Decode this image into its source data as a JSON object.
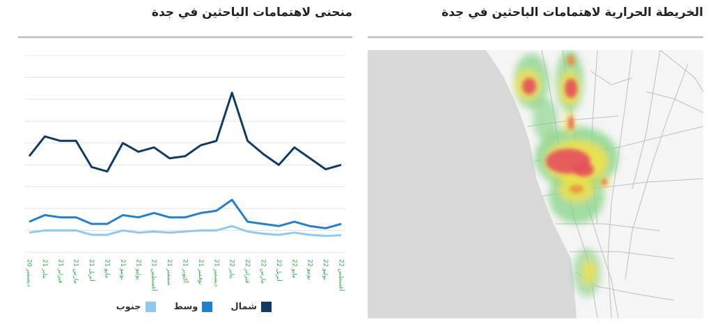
{
  "panels": {
    "chart_title": "منحنى لاهتمامات الباحثين في جدة",
    "map_title": "الخريطة الحرارية لاهتمامات الباحثين  في جدة"
  },
  "legend": [
    {
      "label": "شمال",
      "color": "#0d3b66"
    },
    {
      "label": "وسط",
      "color": "#1f7fd1"
    },
    {
      "label": "جنوب",
      "color": "#8ec9f2"
    }
  ],
  "chart_data": {
    "type": "line",
    "title": "منحنى لاهتمامات الباحثين في جدة",
    "categories": [
      "20 ديسمبر",
      "21 يناير",
      "21 فبراير",
      "21 مارس",
      "21 أبريل",
      "21 مايو",
      "21 يونيو",
      "21 يوليو",
      "21 أغسطس",
      "21 سبتمبر",
      "21 أكتوبر",
      "21 نوفمبر",
      "21 ديسمبر",
      "22 يناير",
      "22 فبراير",
      "22 مارس",
      "22 أبريل",
      "22 مايو",
      "22 يونيو",
      "22 يوليو",
      "22 أغسطس"
    ],
    "ylim": [
      0,
      90
    ],
    "grid": true,
    "legend_position": "bottom",
    "series": [
      {
        "name": "شمال",
        "color": "#0d3b66",
        "values": [
          44,
          53,
          51,
          51,
          39,
          37,
          50,
          46,
          48,
          43,
          44,
          49,
          51,
          73,
          51,
          45,
          40,
          48,
          43,
          38,
          40
        ]
      },
      {
        "name": "وسط",
        "color": "#1f7fd1",
        "values": [
          14,
          17,
          16,
          16,
          13,
          13,
          17,
          16,
          18,
          16,
          16,
          18,
          19,
          24,
          14,
          13,
          12,
          14,
          12,
          11,
          13
        ]
      },
      {
        "name": "جنوب",
        "color": "#8ec9f2",
        "values": [
          9,
          10,
          10,
          10,
          8,
          8,
          10,
          9,
          9.5,
          9,
          9.5,
          10,
          10,
          12,
          9.5,
          8.5,
          8,
          9,
          8,
          7.5,
          7.8
        ]
      }
    ]
  },
  "map": {
    "water_color": "#d9d9d9",
    "land_color": "#f5f5f5",
    "road_color": "#b9b9b9",
    "heat_colors": [
      "#7fd17f",
      "#f2e24a",
      "#ee8a3a",
      "#e4505b"
    ]
  }
}
